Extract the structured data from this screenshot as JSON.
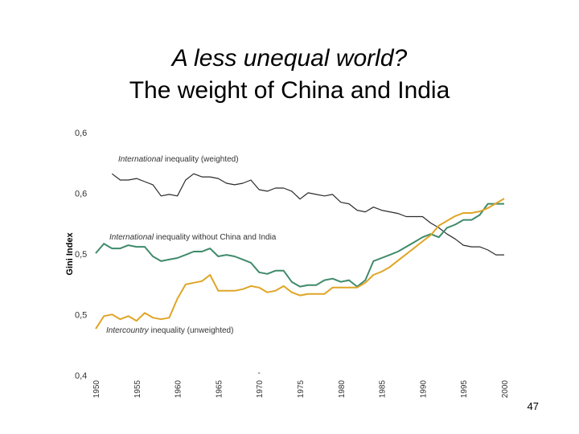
{
  "slide": {
    "title_line1": "A less unequal world?",
    "title_line2": "The weight of China and India",
    "page_number": "47"
  },
  "colors": {
    "weighted": "#2b2b2b",
    "without_china_india": "#3f8a6a",
    "unweighted": "#e0a526"
  },
  "chart_data": {
    "type": "line",
    "title": "",
    "xlabel": "",
    "ylabel": "Gini Index",
    "xlim": [
      1950,
      2000
    ],
    "ylim": [
      0.4,
      0.6
    ],
    "y_ticks": [
      0.4,
      0.45,
      0.5,
      0.55,
      0.6
    ],
    "y_tick_labels": [
      "0,4",
      "0,5",
      "0,5",
      "0,6",
      "0,6"
    ],
    "x_tick_labels": [
      "1950",
      "1955",
      "1960",
      "1965",
      "1970",
      "1975",
      "1980",
      "1985",
      "1990",
      "1995",
      "2000"
    ],
    "x": [
      1950,
      1951,
      1952,
      1953,
      1954,
      1955,
      1956,
      1957,
      1958,
      1959,
      1960,
      1961,
      1962,
      1963,
      1964,
      1965,
      1966,
      1967,
      1968,
      1969,
      1970,
      1971,
      1972,
      1973,
      1974,
      1975,
      1976,
      1977,
      1978,
      1979,
      1980,
      1981,
      1982,
      1983,
      1984,
      1985,
      1986,
      1987,
      1988,
      1989,
      1990,
      1991,
      1992,
      1993,
      1994,
      1995,
      1996,
      1997,
      1998,
      1999,
      2000
    ],
    "series": [
      {
        "name": "International inequality (weighted)",
        "label_italic": "International",
        "label_rest": " inequality (weighted)",
        "color_key": "weighted",
        "values": [
          null,
          null,
          0.5661,
          0.5609,
          0.5609,
          0.5622,
          0.5596,
          0.557,
          0.5478,
          0.5491,
          0.5478,
          0.5609,
          0.5661,
          0.5635,
          0.5635,
          0.5622,
          0.5583,
          0.557,
          0.5583,
          0.5609,
          0.553,
          0.5517,
          0.5543,
          0.5543,
          0.5517,
          0.5452,
          0.5504,
          0.5491,
          0.5478,
          0.5491,
          0.5426,
          0.5413,
          0.536,
          0.5347,
          0.5386,
          0.536,
          0.5347,
          0.5334,
          0.5308,
          0.5308,
          0.5308,
          0.5255,
          0.5216,
          0.5164,
          0.5124,
          0.5072,
          0.5059,
          0.5059,
          0.5033,
          0.4993,
          0.4993
        ]
      },
      {
        "name": "International inequality without China and India",
        "label_italic": "International",
        "label_rest": " inequality without China and India",
        "color_key": "without_china_india",
        "values": [
          0.5006,
          0.5085,
          0.5046,
          0.5046,
          0.5072,
          0.5059,
          0.5059,
          0.498,
          0.4941,
          0.4954,
          0.4967,
          0.4993,
          0.502,
          0.502,
          0.5046,
          0.498,
          0.4993,
          0.498,
          0.4954,
          0.4928,
          0.4849,
          0.4836,
          0.4862,
          0.4862,
          0.477,
          0.4731,
          0.4744,
          0.4744,
          0.4784,
          0.4797,
          0.477,
          0.4784,
          0.4731,
          0.4784,
          0.4941,
          0.4967,
          0.4993,
          0.502,
          0.5059,
          0.5098,
          0.5138,
          0.5164,
          0.5138,
          0.5216,
          0.5242,
          0.5281,
          0.5281,
          0.5321,
          0.5413,
          0.5413,
          0.5413
        ]
      },
      {
        "name": "Intercountry inequality (unweighted)",
        "label_italic": "Intercountry",
        "label_rest": " inequality (unweighted)",
        "color_key": "unweighted",
        "values": [
          0.4383,
          0.4488,
          0.4501,
          0.4462,
          0.4488,
          0.4449,
          0.4514,
          0.4475,
          0.4462,
          0.4475,
          0.4632,
          0.4749,
          0.4763,
          0.4776,
          0.4828,
          0.4697,
          0.4697,
          0.4697,
          0.471,
          0.4736,
          0.4723,
          0.4684,
          0.4697,
          0.4736,
          0.4684,
          0.4658,
          0.4671,
          0.4671,
          0.4671,
          0.4723,
          0.4723,
          0.4723,
          0.4723,
          0.4763,
          0.4828,
          0.4854,
          0.4893,
          0.4946,
          0.4998,
          0.505,
          0.5103,
          0.5155,
          0.5234,
          0.5273,
          0.5312,
          0.5338,
          0.5338,
          0.5351,
          0.5378,
          0.5417,
          0.5456
        ]
      }
    ],
    "annotations": [
      {
        "text": "-",
        "x": 1970,
        "y": 0.4
      }
    ]
  }
}
